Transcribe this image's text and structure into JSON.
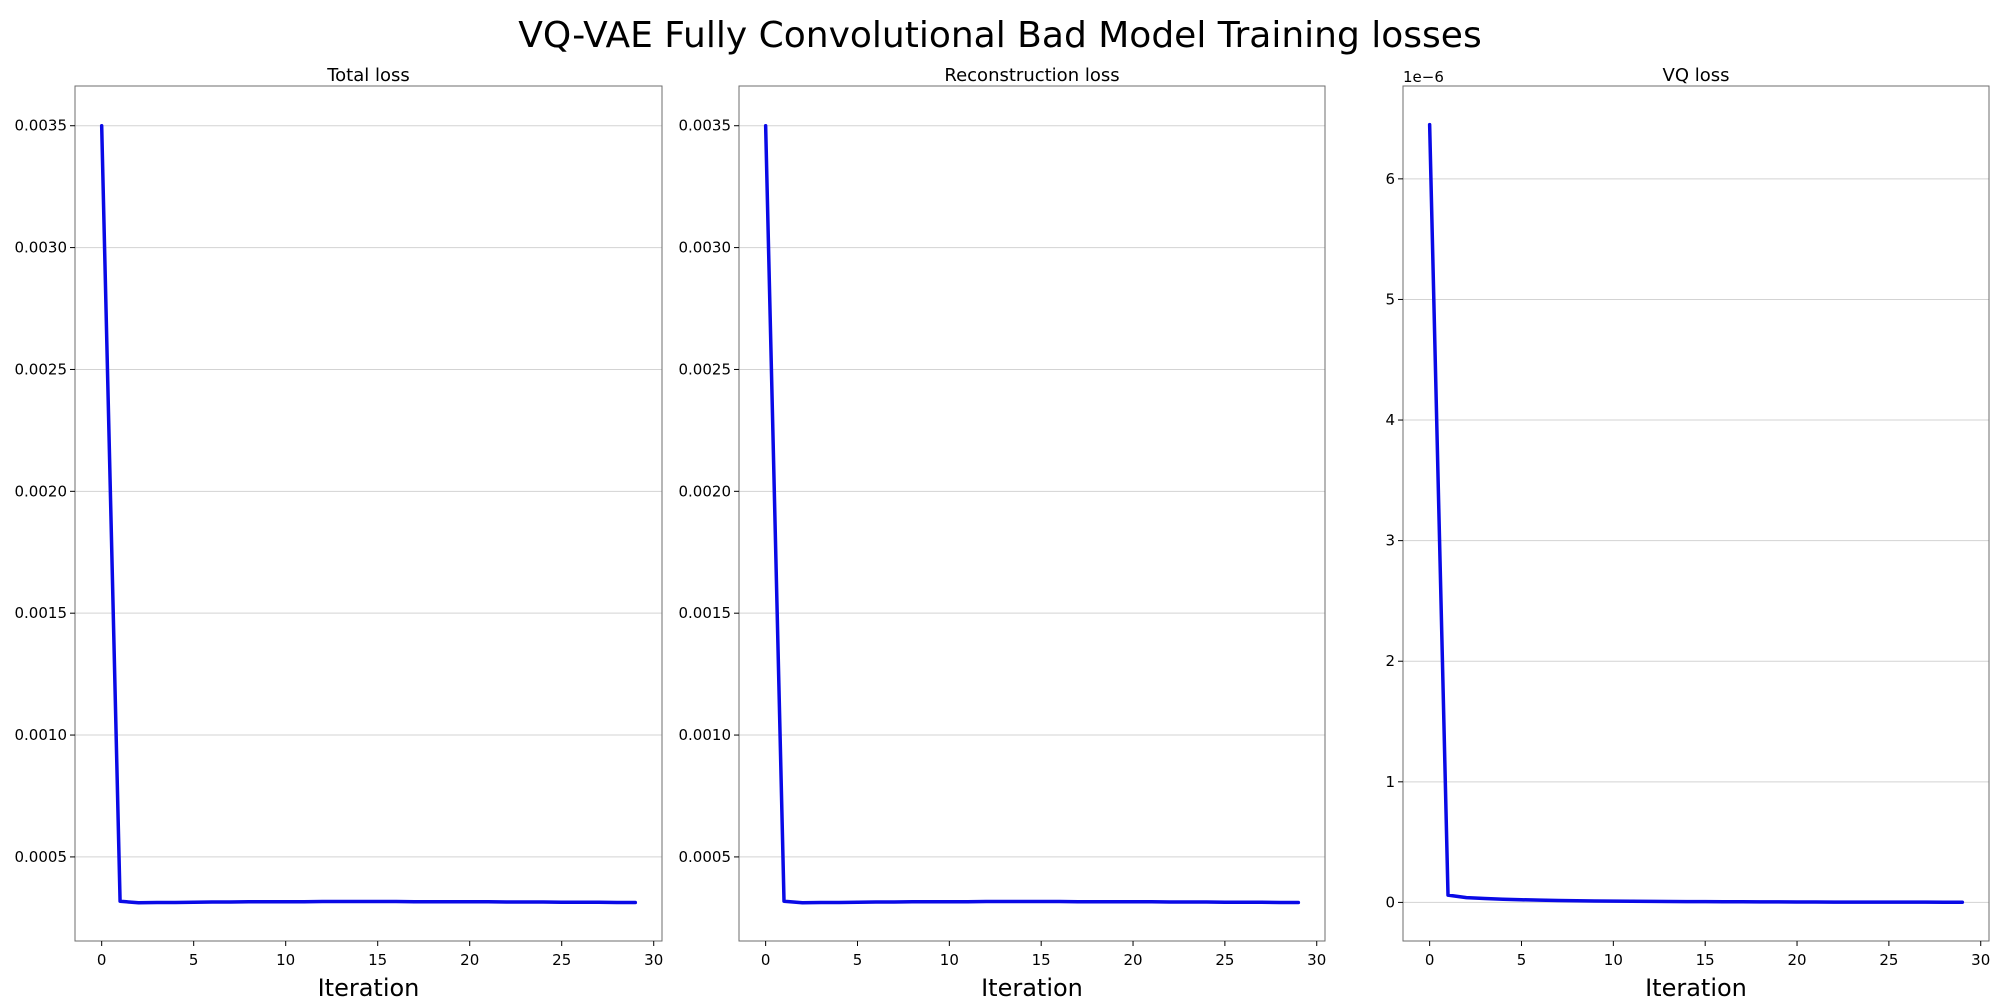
{
  "figure": {
    "title": "VQ-VAE Fully Convolutional Bad Model Training losses"
  },
  "chart_data": [
    {
      "type": "line",
      "title": "Total loss",
      "xlabel": "Iteration",
      "ylabel": "",
      "x_ticks": [
        0,
        5,
        10,
        15,
        20,
        25,
        30
      ],
      "y_ticks": [
        0.0005,
        0.001,
        0.0015,
        0.002,
        0.0025,
        0.003,
        0.0035
      ],
      "y_tick_labels": [
        "0.0005",
        "0.0010",
        "0.0015",
        "0.0020",
        "0.0025",
        "0.0030",
        "0.0035"
      ],
      "xlim": [
        -1.45,
        30.45
      ],
      "ylim": [
        0.000155,
        0.003663
      ],
      "grid": "y",
      "scale_note": "",
      "color": "#0a0ae6",
      "series": [
        {
          "x": [
            0,
            1,
            2,
            3,
            4,
            5,
            6,
            7,
            8,
            9,
            10,
            11,
            12,
            13,
            14,
            15,
            16,
            17,
            18,
            19,
            20,
            21,
            22,
            23,
            24,
            25,
            26,
            27,
            28,
            29
          ],
          "y": [
            0.0035,
            0.000318,
            0.000312,
            0.000313,
            0.000313,
            0.000314,
            0.000315,
            0.000315,
            0.000316,
            0.000316,
            0.000316,
            0.000316,
            0.000317,
            0.000317,
            0.000317,
            0.000317,
            0.000317,
            0.000316,
            0.000316,
            0.000316,
            0.000316,
            0.000316,
            0.000315,
            0.000315,
            0.000315,
            0.000314,
            0.000314,
            0.000314,
            0.000313,
            0.000313
          ]
        }
      ]
    },
    {
      "type": "line",
      "title": "Reconstruction loss",
      "xlabel": "Iteration",
      "ylabel": "",
      "x_ticks": [
        0,
        5,
        10,
        15,
        20,
        25,
        30
      ],
      "y_ticks": [
        0.0005,
        0.001,
        0.0015,
        0.002,
        0.0025,
        0.003,
        0.0035
      ],
      "y_tick_labels": [
        "0.0005",
        "0.0010",
        "0.0015",
        "0.0020",
        "0.0025",
        "0.0030",
        "0.0035"
      ],
      "xlim": [
        -1.45,
        30.45
      ],
      "ylim": [
        0.000155,
        0.003663
      ],
      "grid": "y",
      "scale_note": "",
      "color": "#0a0ae6",
      "series": [
        {
          "x": [
            0,
            1,
            2,
            3,
            4,
            5,
            6,
            7,
            8,
            9,
            10,
            11,
            12,
            13,
            14,
            15,
            16,
            17,
            18,
            19,
            20,
            21,
            22,
            23,
            24,
            25,
            26,
            27,
            28,
            29
          ],
          "y": [
            0.0035,
            0.000318,
            0.000312,
            0.000313,
            0.000313,
            0.000314,
            0.000315,
            0.000315,
            0.000316,
            0.000316,
            0.000316,
            0.000316,
            0.000317,
            0.000317,
            0.000317,
            0.000317,
            0.000317,
            0.000316,
            0.000316,
            0.000316,
            0.000316,
            0.000316,
            0.000315,
            0.000315,
            0.000315,
            0.000314,
            0.000314,
            0.000314,
            0.000313,
            0.000313
          ]
        }
      ]
    },
    {
      "type": "line",
      "title": "VQ loss",
      "xlabel": "Iteration",
      "ylabel": "",
      "x_ticks": [
        0,
        5,
        10,
        15,
        20,
        25,
        30
      ],
      "y_ticks": [
        0,
        1e-06,
        2e-06,
        3e-06,
        4e-06,
        5e-06,
        6e-06
      ],
      "y_tick_labels": [
        "0",
        "1",
        "2",
        "3",
        "4",
        "5",
        "6"
      ],
      "xlim": [
        -1.45,
        30.45
      ],
      "ylim": [
        -3.2e-07,
        6.77e-06
      ],
      "grid": "y",
      "scale_note": "1e−6",
      "color": "#0a0ae6",
      "series": [
        {
          "x": [
            0,
            1,
            2,
            3,
            4,
            5,
            6,
            7,
            8,
            9,
            10,
            11,
            12,
            13,
            14,
            15,
            16,
            17,
            18,
            19,
            20,
            21,
            22,
            23,
            24,
            25,
            26,
            27,
            28,
            29
          ],
          "y": [
            6.45e-06,
            6e-08,
            4e-08,
            3.2e-08,
            2.6e-08,
            2.2e-08,
            1.9e-08,
            1.6e-08,
            1.4e-08,
            1.2e-08,
            1.1e-08,
            1e-08,
            9e-09,
            8e-09,
            7e-09,
            6.5e-09,
            5.5e-09,
            5e-09,
            4.5e-09,
            4e-09,
            3.5e-09,
            3e-09,
            2.8e-09,
            2.6e-09,
            2.4e-09,
            2.2e-09,
            2e-09,
            1.9e-09,
            1.8e-09,
            1.7e-09
          ]
        }
      ]
    }
  ]
}
